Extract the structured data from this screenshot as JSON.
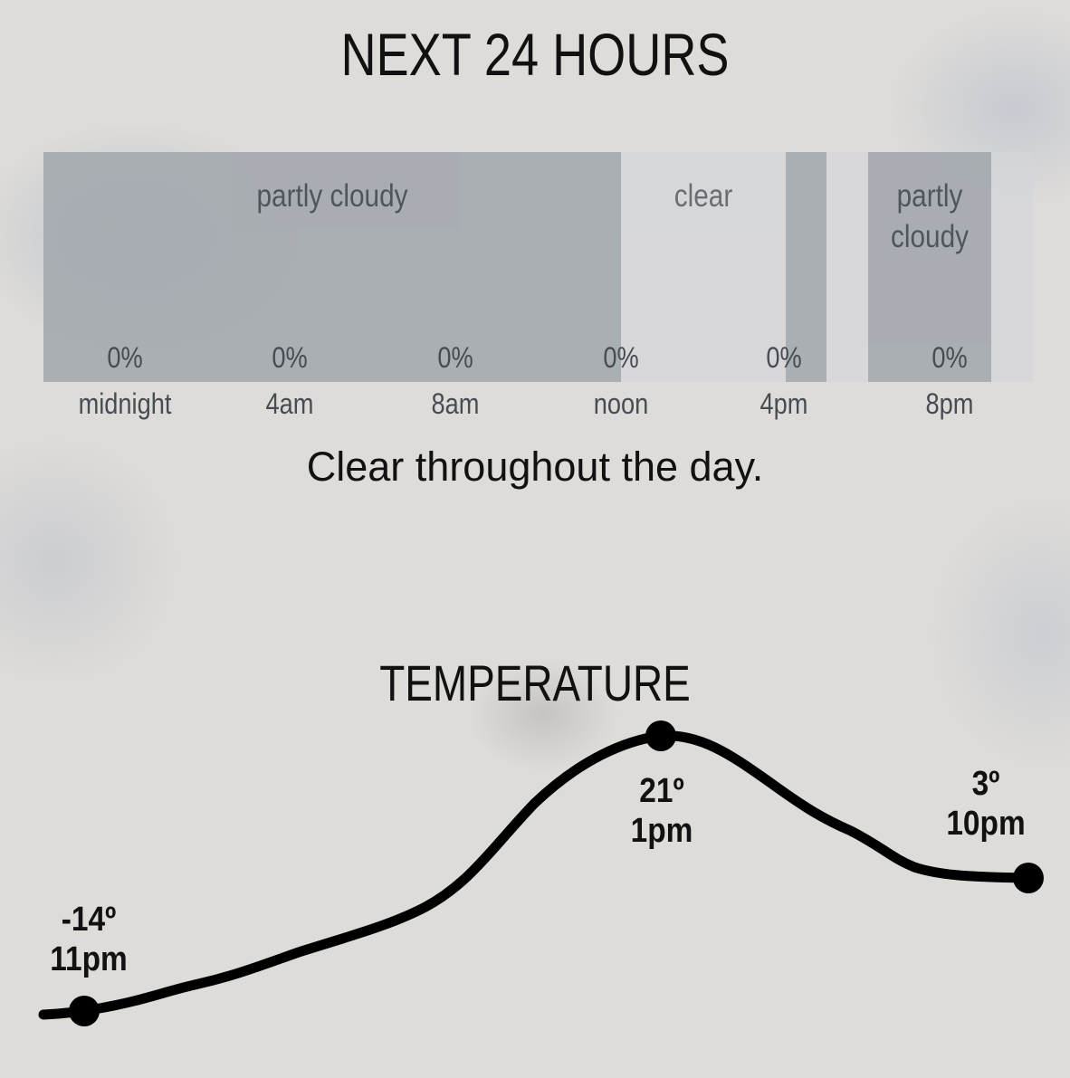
{
  "header": {
    "title": "NEXT 24 HOURS"
  },
  "conditions": {
    "segments": [
      {
        "label_lines": [
          "partly cloudy"
        ],
        "tone": "cloudy"
      },
      {
        "label_lines": [
          "clear"
        ],
        "tone": "clear"
      },
      {
        "label_lines": [],
        "tone": "cloudy"
      },
      {
        "label_lines": [],
        "tone": "clear"
      },
      {
        "label_lines": [
          "partly",
          "cloudy"
        ],
        "tone": "cloudy"
      },
      {
        "label_lines": [],
        "tone": "clear"
      }
    ],
    "precipitation": [
      "0%",
      "0%",
      "0%",
      "0%",
      "0%",
      "0%"
    ],
    "times": [
      "midnight",
      "4am",
      "8am",
      "noon",
      "4pm",
      "8pm"
    ],
    "colors": {
      "cloudy": "#a5aab0",
      "clear": "#d4d6da"
    }
  },
  "summary": "Clear throughout the day.",
  "temperature": {
    "title": "TEMPERATURE",
    "points": [
      {
        "temp": "-14º",
        "time": "11pm"
      },
      {
        "temp": "21º",
        "time": "1pm"
      },
      {
        "temp": "3º",
        "time": "10pm"
      }
    ]
  }
}
